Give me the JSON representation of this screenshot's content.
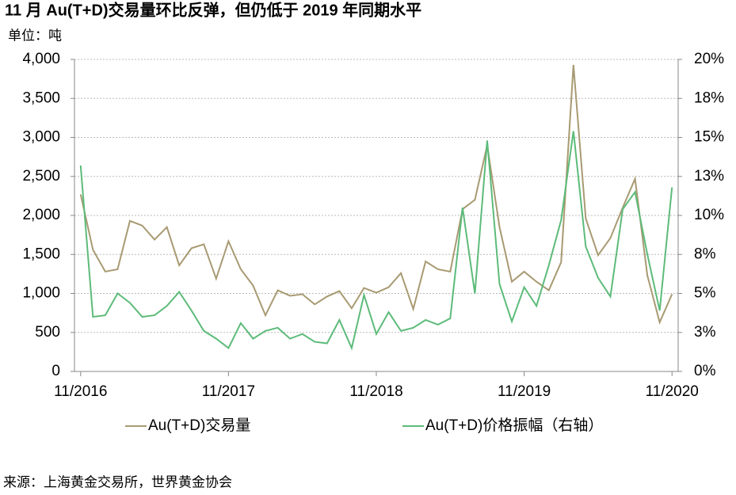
{
  "chart_data": {
    "type": "line",
    "title": "11 月 Au(T+D)交易量环比反弹，但仍低于 2019 年同期水平",
    "y_label": "单位：吨",
    "source": "来源：上海黄金交易所，世界黄金协会",
    "categories": [
      "11/2016",
      null,
      null,
      null,
      null,
      null,
      null,
      null,
      null,
      null,
      null,
      null,
      "11/2017",
      null,
      null,
      null,
      null,
      null,
      null,
      null,
      null,
      null,
      null,
      null,
      "11/2018",
      null,
      null,
      null,
      null,
      null,
      null,
      null,
      null,
      null,
      null,
      null,
      "11/2019",
      null,
      null,
      null,
      null,
      null,
      null,
      null,
      null,
      null,
      null,
      null,
      "11/2020"
    ],
    "series": [
      {
        "name": "Au(T+D)交易量",
        "color": "#a89a72",
        "axis": "y",
        "values": [
          2270,
          1560,
          1280,
          1310,
          1930,
          1870,
          1690,
          1850,
          1360,
          1580,
          1630,
          1190,
          1670,
          1310,
          1100,
          720,
          1040,
          970,
          990,
          860,
          960,
          1030,
          810,
          1070,
          1010,
          1080,
          1260,
          800,
          1410,
          1310,
          1280,
          2080,
          2200,
          2900,
          1850,
          1150,
          1280,
          1150,
          1040,
          1400,
          3930,
          1960,
          1490,
          1710,
          2100,
          2470,
          1230,
          630,
          990
        ]
      },
      {
        "name": "Au(T+D)价格振幅（右轴）",
        "color": "#5dbb7a",
        "axis": "y2",
        "values": [
          13.2,
          3.5,
          3.6,
          5.0,
          4.4,
          3.5,
          3.6,
          4.2,
          5.1,
          3.9,
          2.6,
          2.1,
          1.5,
          3.1,
          2.1,
          2.6,
          2.8,
          2.1,
          2.4,
          1.9,
          1.8,
          3.3,
          1.5,
          4.9,
          2.4,
          3.8,
          2.6,
          2.8,
          3.3,
          3.0,
          3.4,
          10.5,
          5.0,
          14.8,
          5.6,
          3.2,
          5.4,
          4.2,
          6.8,
          9.7,
          15.4,
          8.0,
          6.0,
          4.8,
          10.4,
          11.5,
          7.5,
          3.9,
          11.8
        ]
      }
    ],
    "ylim": [
      0,
      4000
    ],
    "yticks": [
      0,
      500,
      {
        "value": 1000,
        "label": "1,000"
      },
      {
        "value": 1500,
        "label": "1,500"
      },
      {
        "value": 2000,
        "label": "2,000"
      },
      {
        "value": 2500,
        "label": "2,500"
      },
      {
        "value": 3000,
        "label": "3,000"
      },
      {
        "value": 3500,
        "label": "3,500"
      },
      {
        "value": 4000,
        "label": "4,000"
      }
    ],
    "y2lim": [
      0,
      20
    ],
    "y2ticks": [
      {
        "value": 0,
        "label": "0%"
      },
      {
        "value": 2.5,
        "label": "3%"
      },
      {
        "value": 5,
        "label": "5%"
      },
      {
        "value": 7.5,
        "label": "8%"
      },
      {
        "value": 10,
        "label": "10%"
      },
      {
        "value": 12.5,
        "label": "13%"
      },
      {
        "value": 15,
        "label": "15%"
      },
      {
        "value": 17.5,
        "label": "18%"
      },
      {
        "value": 20,
        "label": "20%"
      }
    ],
    "grid": true
  }
}
